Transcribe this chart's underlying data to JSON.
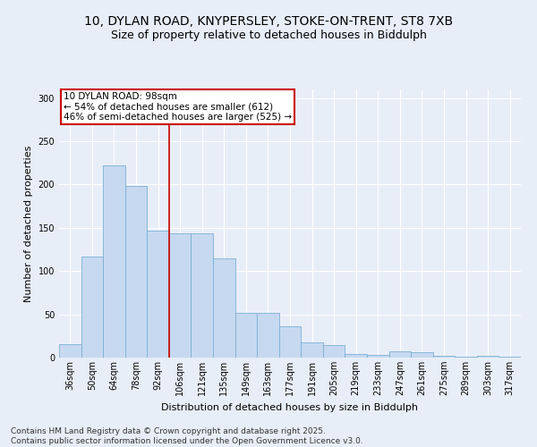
{
  "title_line1": "10, DYLAN ROAD, KNYPERSLEY, STOKE-ON-TRENT, ST8 7XB",
  "title_line2": "Size of property relative to detached houses in Biddulph",
  "xlabel": "Distribution of detached houses by size in Biddulph",
  "ylabel": "Number of detached properties",
  "categories": [
    "36sqm",
    "50sqm",
    "64sqm",
    "78sqm",
    "92sqm",
    "106sqm",
    "121sqm",
    "135sqm",
    "149sqm",
    "163sqm",
    "177sqm",
    "191sqm",
    "205sqm",
    "219sqm",
    "233sqm",
    "247sqm",
    "261sqm",
    "275sqm",
    "289sqm",
    "303sqm",
    "317sqm"
  ],
  "values": [
    15,
    117,
    222,
    198,
    147,
    144,
    144,
    115,
    52,
    52,
    36,
    18,
    14,
    4,
    3,
    7,
    6,
    2,
    1,
    2,
    1
  ],
  "bar_color": "#c6d9f0",
  "bar_edge_color": "#7bafd4",
  "vline_x": 5,
  "vline_color": "#cc0000",
  "annotation_title": "10 DYLAN ROAD: 98sqm",
  "annotation_line2": "← 54% of detached houses are smaller (612)",
  "annotation_line3": "46% of semi-detached houses are larger (525) →",
  "annotation_box_color": "#cc0000",
  "ylim": [
    0,
    310
  ],
  "yticks": [
    0,
    50,
    100,
    150,
    200,
    250,
    300
  ],
  "footer_line1": "Contains HM Land Registry data © Crown copyright and database right 2025.",
  "footer_line2": "Contains public sector information licensed under the Open Government Licence v3.0.",
  "bg_color": "#e8eef8",
  "plot_bg_color": "#e8eef8",
  "title_fontsize": 10,
  "subtitle_fontsize": 9,
  "axis_label_fontsize": 8,
  "tick_fontsize": 7,
  "footer_fontsize": 6.5,
  "annotation_fontsize": 7.5
}
